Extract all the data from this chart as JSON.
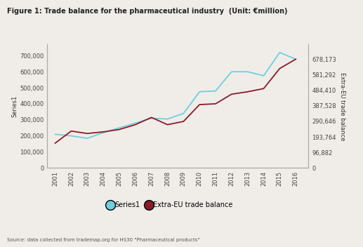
{
  "title": "Figure 1: Trade balance for the pharmaceutical industry  (Unit: €million)",
  "years": [
    2001,
    2002,
    2003,
    2004,
    2005,
    2006,
    2007,
    2008,
    2009,
    2010,
    2011,
    2012,
    2013,
    2014,
    2015,
    2016
  ],
  "series1": [
    210000,
    200000,
    185000,
    220000,
    250000,
    280000,
    310000,
    305000,
    340000,
    475000,
    480000,
    600000,
    600000,
    575000,
    720000,
    678173
  ],
  "extra_eu": [
    155000,
    230000,
    215000,
    225000,
    240000,
    270000,
    315000,
    270000,
    290000,
    395000,
    400000,
    460000,
    475000,
    495000,
    620000,
    678173
  ],
  "series1_color": "#6ECFDF",
  "extra_eu_color": "#8B1A2A",
  "left_yticks": [
    0,
    100000,
    200000,
    300000,
    400000,
    500000,
    600000,
    700000
  ],
  "right_yticks": [
    0,
    96882,
    193764,
    290646,
    387528,
    484410,
    581292,
    678173
  ],
  "right_yticklabels": [
    "0",
    "96,882",
    "193,764",
    "290,646",
    "387,528",
    "484,410",
    "581,292",
    "678,173"
  ],
  "left_yticklabels": [
    "0",
    "100,000",
    "200,000",
    "300,000",
    "400,000",
    "500,000",
    "600,000",
    "700,000"
  ],
  "ylabel_left": "Series1",
  "ylabel_right": "Extra-EU trade balance",
  "source_text": "Source: data collected from trademap.org for HS30 \"Pharmaceutical products\"",
  "background_color": "#F0EDE8",
  "legend_series1": "Series1",
  "legend_extra_eu": "Extra-EU trade balance",
  "ylim": [
    0,
    770000
  ]
}
